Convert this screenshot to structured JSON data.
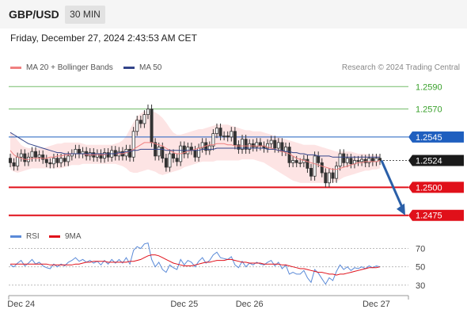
{
  "header": {
    "pair": "GBP/USD",
    "timeframe": "30 MIN",
    "datetime": "Friday, December 27, 2024 2:43:53 AM CET"
  },
  "legend": {
    "ma20": "MA 20 + Bollinger Bands",
    "ma50": "MA 50",
    "rsi": "RSI",
    "ma9": "9MA",
    "copyright": "Research © 2024 Trading Central"
  },
  "colors": {
    "resistance": "#3aa12c",
    "pivot": "#1f5fbf",
    "support": "#e0101a",
    "ma20": "#f08080",
    "ma50": "#33448a",
    "bands_fill": "#fde4e4",
    "arrow": "#2a5fa8",
    "rsi": "#5a8ad8",
    "ma9": "#e0101a"
  },
  "chart_data": [
    {
      "type": "line",
      "title": "",
      "ylim": [
        1.2467,
        1.2598
      ],
      "levels": [
        {
          "name": "resistance-2",
          "value": 1.259,
          "label": "1.2590",
          "kind": "resistance"
        },
        {
          "name": "resistance-1",
          "value": 1.257,
          "label": "1.2570",
          "kind": "resistance"
        },
        {
          "name": "pivot",
          "value": 1.2545,
          "label": "1.2545",
          "kind": "pivot"
        },
        {
          "name": "current-price",
          "value": 1.2524,
          "label": "1.2524",
          "kind": "price"
        },
        {
          "name": "support-1",
          "value": 1.25,
          "label": "1.2500",
          "kind": "support"
        },
        {
          "name": "support-2",
          "value": 1.2475,
          "label": "1.2475",
          "kind": "support"
        }
      ],
      "x_ticks": [
        "Dec 24",
        "Dec 25",
        "Dec 26",
        "Dec 27"
      ],
      "close": [
        1.2522,
        1.2519,
        1.2527,
        1.253,
        1.2523,
        1.2527,
        1.2532,
        1.2527,
        1.2529,
        1.2525,
        1.2522,
        1.2521,
        1.2526,
        1.2522,
        1.2526,
        1.2523,
        1.2528,
        1.253,
        1.2534,
        1.253,
        1.2532,
        1.2528,
        1.2531,
        1.2527,
        1.253,
        1.2526,
        1.2531,
        1.2527,
        1.2533,
        1.2528,
        1.2532,
        1.2528,
        1.2534,
        1.2527,
        1.255,
        1.256,
        1.2557,
        1.2565,
        1.257,
        1.254,
        1.2528,
        1.2536,
        1.2526,
        1.2518,
        1.253,
        1.2526,
        1.2523,
        1.2537,
        1.253,
        1.2536,
        1.2533,
        1.2527,
        1.2535,
        1.254,
        1.2533,
        1.2537,
        1.2548,
        1.2553,
        1.2546,
        1.2546,
        1.2545,
        1.255,
        1.2538,
        1.2534,
        1.2543,
        1.2534,
        1.2539,
        1.2536,
        1.254,
        1.2537,
        1.2535,
        1.2539,
        1.2542,
        1.2535,
        1.254,
        1.2532,
        1.2536,
        1.2522,
        1.2524,
        1.2522,
        1.2522,
        1.2525,
        1.2517,
        1.251,
        1.2528,
        1.2522,
        1.2513,
        1.2504,
        1.2513,
        1.2508,
        1.2519,
        1.253,
        1.2522,
        1.2526,
        1.2521,
        1.2524,
        1.2523,
        1.2525,
        1.2522,
        1.2526,
        1.2523,
        1.2526,
        1.2524
      ],
      "ma20": [
        1.2533,
        1.2529,
        1.2527,
        1.2526,
        1.2525,
        1.2525,
        1.2526,
        1.2526,
        1.2526,
        1.2526,
        1.2526,
        1.2527,
        1.2527,
        1.2528,
        1.2528,
        1.2529,
        1.2529,
        1.253,
        1.253,
        1.253,
        1.253,
        1.2529,
        1.2529,
        1.2529,
        1.2529,
        1.2529,
        1.2529,
        1.253,
        1.253,
        1.253,
        1.253,
        1.253,
        1.2531,
        1.2532,
        1.2534,
        1.2536,
        1.2538,
        1.254,
        1.254,
        1.254,
        1.2539,
        1.2538,
        1.2537,
        1.2535,
        1.2533,
        1.2531,
        1.253,
        1.253,
        1.2531,
        1.2532,
        1.2533,
        1.2534,
        1.2535,
        1.2536,
        1.2537,
        1.2538,
        1.2538,
        1.2539,
        1.2539,
        1.2539,
        1.2538,
        1.2538,
        1.2537,
        1.2537,
        1.2537,
        1.2537,
        1.2537,
        1.2537,
        1.2537,
        1.2537,
        1.2537,
        1.2536,
        1.2535,
        1.2534,
        1.2533,
        1.2532,
        1.2531,
        1.253,
        1.2528,
        1.2526,
        1.2525,
        1.2524,
        1.2523,
        1.2522,
        1.2521,
        1.252,
        1.2519,
        1.2518,
        1.2517,
        1.2516,
        1.2516,
        1.2517,
        1.2518,
        1.2519,
        1.252,
        1.2521,
        1.2522,
        1.2522,
        1.2523,
        1.2523,
        1.2523,
        1.2523,
        1.2524
      ],
      "bb_upper": [
        1.255,
        1.2546,
        1.2542,
        1.2538,
        1.2536,
        1.2535,
        1.2535,
        1.2535,
        1.2535,
        1.2535,
        1.2536,
        1.2537,
        1.2538,
        1.2539,
        1.2539,
        1.254,
        1.254,
        1.254,
        1.254,
        1.254,
        1.2539,
        1.2538,
        1.2538,
        1.2538,
        1.2538,
        1.2538,
        1.2538,
        1.2538,
        1.2538,
        1.2539,
        1.254,
        1.2542,
        1.2546,
        1.2552,
        1.2558,
        1.2563,
        1.2566,
        1.2568,
        1.2568,
        1.2568,
        1.2567,
        1.2565,
        1.2562,
        1.2558,
        1.2553,
        1.2549,
        1.2547,
        1.2547,
        1.2548,
        1.2549,
        1.255,
        1.2551,
        1.2552,
        1.2552,
        1.2553,
        1.2554,
        1.2555,
        1.2556,
        1.2556,
        1.2556,
        1.2556,
        1.2555,
        1.2554,
        1.2553,
        1.2552,
        1.2551,
        1.2551,
        1.255,
        1.255,
        1.255,
        1.2549,
        1.2548,
        1.2547,
        1.2546,
        1.2545,
        1.2544,
        1.2543,
        1.2542,
        1.2541,
        1.254,
        1.2539,
        1.2538,
        1.2538,
        1.2538,
        1.2538,
        1.2537,
        1.2536,
        1.2535,
        1.2534,
        1.2533,
        1.2532,
        1.2532,
        1.2532,
        1.2532,
        1.2532,
        1.2531,
        1.253,
        1.253,
        1.253,
        1.2529,
        1.2529,
        1.2529,
        1.2529
      ],
      "bb_lower": [
        1.2516,
        1.2514,
        1.2513,
        1.2514,
        1.2515,
        1.2516,
        1.2517,
        1.2517,
        1.2517,
        1.2517,
        1.2517,
        1.2517,
        1.2517,
        1.2517,
        1.2517,
        1.2518,
        1.2519,
        1.252,
        1.252,
        1.252,
        1.2521,
        1.2521,
        1.2521,
        1.2521,
        1.2521,
        1.2521,
        1.2521,
        1.2521,
        1.2521,
        1.2521,
        1.252,
        1.2519,
        1.2517,
        1.2514,
        1.2513,
        1.2513,
        1.2514,
        1.2515,
        1.2516,
        1.2515,
        1.2514,
        1.2512,
        1.2511,
        1.2512,
        1.2513,
        1.2514,
        1.2515,
        1.2516,
        1.2518,
        1.2519,
        1.252,
        1.2521,
        1.2522,
        1.2523,
        1.2523,
        1.2523,
        1.2523,
        1.2524,
        1.2524,
        1.2524,
        1.2524,
        1.2524,
        1.2524,
        1.2524,
        1.2525,
        1.2525,
        1.2525,
        1.2525,
        1.2524,
        1.2523,
        1.2522,
        1.252,
        1.2518,
        1.2516,
        1.2514,
        1.2512,
        1.251,
        1.2508,
        1.2506,
        1.2505,
        1.2504,
        1.2504,
        1.2504,
        1.2504,
        1.2504,
        1.2504,
        1.2504,
        1.2504,
        1.2504,
        1.2504,
        1.2505,
        1.2507,
        1.2509,
        1.251,
        1.2511,
        1.2512,
        1.2513,
        1.2514,
        1.2515,
        1.2515,
        1.2516,
        1.2516,
        1.2517
      ],
      "ma50": [
        1.2549,
        1.2547,
        1.2545,
        1.2543,
        1.2541,
        1.2539,
        1.2538,
        1.2537,
        1.2536,
        1.2535,
        1.2534,
        1.2533,
        1.2532,
        1.2531,
        1.2531,
        1.253,
        1.253,
        1.253,
        1.253,
        1.253,
        1.253,
        1.253,
        1.253,
        1.253,
        1.253,
        1.253,
        1.253,
        1.253,
        1.253,
        1.253,
        1.2531,
        1.2531,
        1.2532,
        1.2532,
        1.2533,
        1.2533,
        1.2534,
        1.2534,
        1.2534,
        1.2534,
        1.2534,
        1.2534,
        1.2534,
        1.2533,
        1.2533,
        1.2533,
        1.2533,
        1.2533,
        1.2533,
        1.2533,
        1.2533,
        1.2533,
        1.2533,
        1.2534,
        1.2534,
        1.2534,
        1.2534,
        1.2535,
        1.2535,
        1.2535,
        1.2535,
        1.2535,
        1.2535,
        1.2535,
        1.2535,
        1.2535,
        1.2535,
        1.2535,
        1.2535,
        1.2535,
        1.2535,
        1.2534,
        1.2534,
        1.2534,
        1.2533,
        1.2533,
        1.2532,
        1.2532,
        1.2531,
        1.2531,
        1.253,
        1.253,
        1.2529,
        1.2529,
        1.2529,
        1.2528,
        1.2528,
        1.2528,
        1.2528,
        1.2527,
        1.2527,
        1.2527,
        1.2527,
        1.2527,
        1.2527,
        1.2527,
        1.2527,
        1.2527,
        1.2527,
        1.2527,
        1.2527,
        1.2527,
        1.2527
      ],
      "projection": {
        "from": 1.2524,
        "to": 1.2475
      }
    },
    {
      "type": "line",
      "title": "",
      "ylim": [
        22,
        80
      ],
      "y_ticks": [
        70,
        50,
        30
      ],
      "series": [
        {
          "name": "RSI",
          "values": [
            52,
            50,
            54,
            57,
            51,
            54,
            58,
            53,
            55,
            51,
            49,
            48,
            53,
            50,
            53,
            51,
            55,
            57,
            60,
            56,
            58,
            55,
            57,
            54,
            56,
            52,
            57,
            53,
            58,
            54,
            58,
            54,
            60,
            53,
            68,
            72,
            70,
            75,
            76,
            58,
            50,
            55,
            47,
            44,
            52,
            49,
            47,
            58,
            52,
            57,
            55,
            50,
            56,
            60,
            54,
            57,
            63,
            66,
            60,
            59,
            58,
            61,
            52,
            49,
            56,
            50,
            54,
            52,
            55,
            53,
            52,
            55,
            57,
            51,
            55,
            48,
            52,
            42,
            44,
            42,
            42,
            46,
            38,
            33,
            47,
            43,
            37,
            31,
            38,
            35,
            45,
            52,
            47,
            50,
            46,
            49,
            48,
            50,
            48,
            51,
            49,
            51,
            50
          ]
        },
        {
          "name": "9MA",
          "values": [
            53,
            53,
            53,
            53,
            53,
            53,
            53,
            53,
            53,
            53,
            53,
            52,
            52,
            52,
            52,
            52,
            52,
            52,
            53,
            53,
            54,
            55,
            55,
            56,
            56,
            56,
            56,
            55,
            55,
            55,
            55,
            55,
            55,
            56,
            56,
            57,
            58,
            60,
            62,
            63,
            63,
            62,
            60,
            58,
            56,
            54,
            53,
            52,
            51,
            51,
            51,
            52,
            53,
            54,
            55,
            55,
            56,
            57,
            57,
            57,
            58,
            58,
            57,
            56,
            55,
            55,
            54,
            54,
            54,
            54,
            53,
            53,
            53,
            53,
            53,
            52,
            52,
            51,
            50,
            49,
            48,
            48,
            47,
            46,
            45,
            44,
            44,
            43,
            42,
            42,
            41,
            42,
            42,
            43,
            44,
            45,
            46,
            47,
            48,
            49,
            49,
            49,
            50
          ]
        }
      ],
      "x_ticks": [
        "Dec 24",
        "Dec 25",
        "Dec 26",
        "Dec 27"
      ]
    }
  ]
}
